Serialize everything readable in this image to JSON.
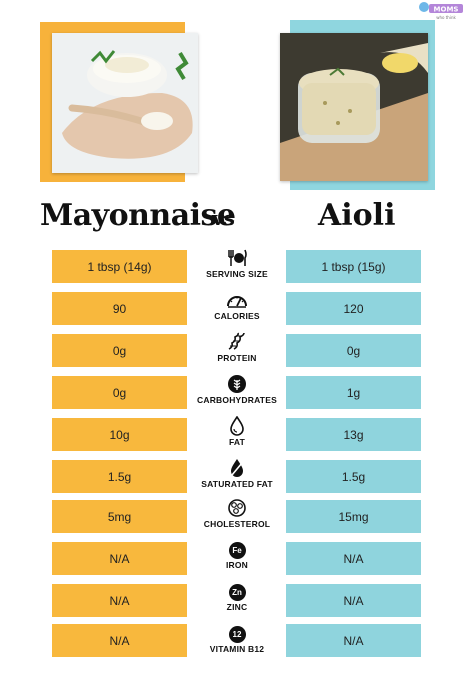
{
  "logo": {
    "line1": "MOMS",
    "line2": "who think"
  },
  "titles": {
    "left": "Mayonnaise",
    "vs": "vs",
    "right": "Aioli"
  },
  "colors": {
    "left_cell": "#f8b83d",
    "right_cell": "#8fd4dd"
  },
  "rows": [
    {
      "left": "1 tbsp (14g)",
      "label": "SERVING SIZE",
      "right": "1 tbsp (15g)",
      "icon": "utensils-icon"
    },
    {
      "left": "90",
      "label": "CALORIES",
      "right": "120",
      "icon": "gauge-icon"
    },
    {
      "left": "0g",
      "label": "PROTEIN",
      "right": "0g",
      "icon": "protein-icon"
    },
    {
      "left": "0g",
      "label": "CARBOHYDRATES",
      "right": "1g",
      "icon": "wheat-icon"
    },
    {
      "left": "10g",
      "label": "FAT",
      "right": "13g",
      "icon": "drop-icon"
    },
    {
      "left": "1.5g",
      "label": "SATURATED FAT",
      "right": "1.5g",
      "icon": "drop-slash-icon"
    },
    {
      "left": "5mg",
      "label": "CHOLESTEROL",
      "right": "15mg",
      "icon": "cholesterol-icon"
    },
    {
      "left": "N/A",
      "label": "IRON",
      "right": "N/A",
      "icon": "fe-badge",
      "badge": "Fe"
    },
    {
      "left": "N/A",
      "label": "ZINC",
      "right": "N/A",
      "icon": "zn-badge",
      "badge": "Zn"
    },
    {
      "left": "N/A",
      "label": "VITAMIN B12",
      "right": "N/A",
      "icon": "b12-badge",
      "badge": "12"
    }
  ]
}
